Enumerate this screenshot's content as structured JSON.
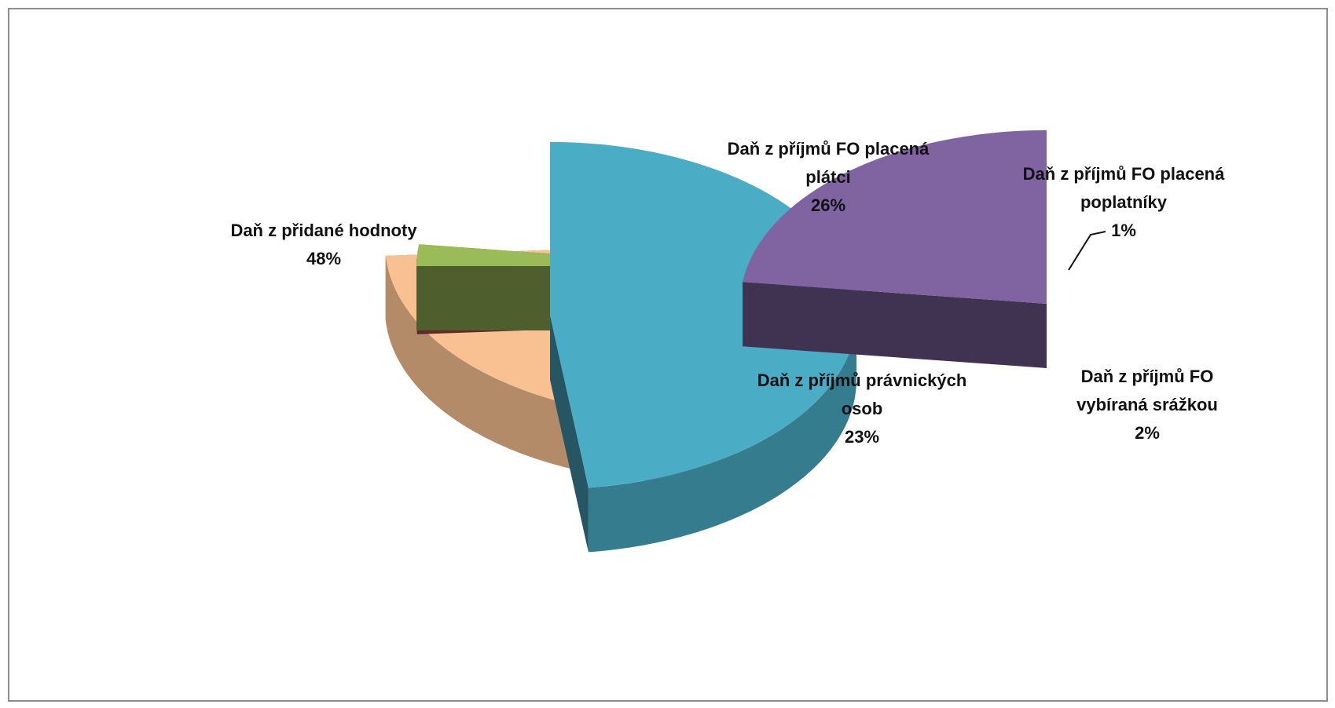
{
  "chart_data": {
    "type": "pie",
    "title": "",
    "categories": [
      "Daň z přidané hodnoty",
      "Daň z příjmů FO placená plátci",
      "Daň z příjmů FO placená poplatníky",
      "Daň z příjmů FO vybíraná srážkou",
      "Daň z příjmů právnických osob"
    ],
    "values": [
      48,
      26,
      1,
      2,
      23
    ],
    "slices": [
      {
        "label_lines": [
          "Daň z přidané hodnoty"
        ],
        "percent": "48%",
        "color": "#4bacc6"
      },
      {
        "label_lines": [
          "Daň z příjmů FO placená",
          "plátci"
        ],
        "percent": "26%",
        "color": "#f9c192"
      },
      {
        "label_lines": [
          "Daň z příjmů FO placená",
          "poplatníky"
        ],
        "percent": "1%",
        "color": "#c0504d"
      },
      {
        "label_lines": [
          "Daň z příjmů FO",
          "vybíraná srážkou"
        ],
        "percent": "2%",
        "color": "#9bbb59"
      },
      {
        "label_lines": [
          "Daň z příjmů právnických",
          "osob"
        ],
        "percent": "23%",
        "color": "#8064a2"
      }
    ],
    "style": "3d-exploded",
    "legend": "none"
  }
}
